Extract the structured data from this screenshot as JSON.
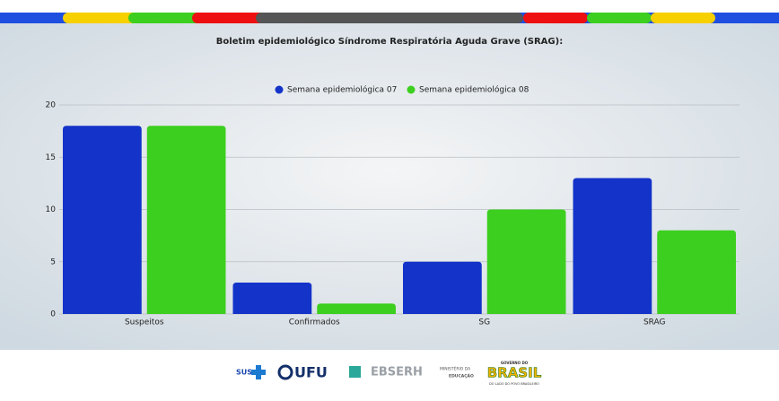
{
  "chart_data": {
    "type": "bar",
    "title": "Boletim epidemiológico Síndrome Respiratória Aguda Grave (SRAG):",
    "categories": [
      "Suspeitos",
      "Confirmados",
      "SG",
      "SRAG"
    ],
    "series": [
      {
        "name": "Semana epidemiológica 07",
        "color": "#1433c9",
        "values": [
          18,
          3,
          5,
          13
        ]
      },
      {
        "name": "Semana epidemiológica 08",
        "color": "#3dcf1f",
        "values": [
          18,
          1,
          10,
          8
        ]
      }
    ],
    "ylim": [
      0,
      20
    ],
    "yticks": [
      0,
      5,
      10,
      15,
      20
    ],
    "grid": true,
    "legend": "top"
  },
  "footer": {
    "logos": [
      "SUS",
      "UFU",
      "EBSERH",
      "MINISTÉRIO DA",
      "EDUCAÇÃO",
      "GOVERNO DO",
      "BRASIL",
      "DO LADO DO POVO BRASILEIRO"
    ]
  }
}
